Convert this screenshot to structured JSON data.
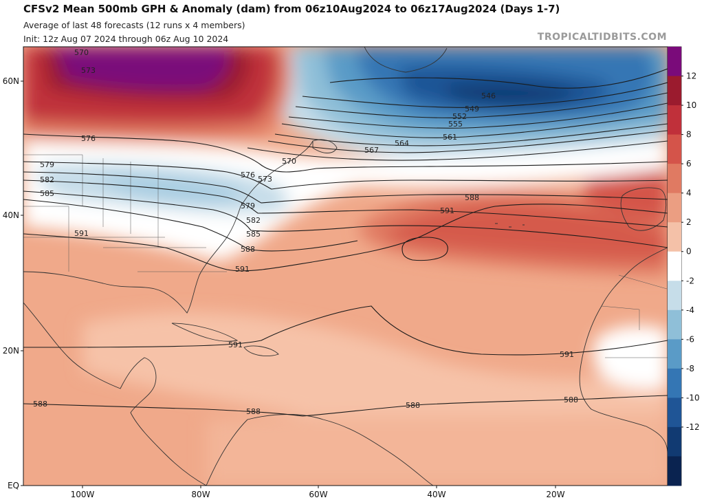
{
  "header": {
    "title": "CFSv2 Mean 500mb GPH & Anomaly (dam) from 06z10Aug2024 to 06z17Aug2024 (Days 1-7)",
    "line2": "Average of last 48 forecasts (12 runs x 4 members)",
    "line3": "Init: 12z Aug 07 2024 through 06z Aug 10 2024",
    "watermark": "TROPICALTIDBITS.COM"
  },
  "axes": {
    "lat_labels": [
      "60N",
      "40N",
      "20N",
      "EQ"
    ],
    "lon_labels": [
      "100W",
      "80W",
      "60W",
      "40W",
      "20W"
    ]
  },
  "colorbar": {
    "ticks": [
      "12",
      "10",
      "8",
      "6",
      "4",
      "2",
      "0",
      "-2",
      "-4",
      "-6",
      "-8",
      "-10",
      "-12"
    ],
    "colors": [
      "#7a0b7a",
      "#9b1b2e",
      "#c0303a",
      "#d4544a",
      "#e07a62",
      "#eb9e82",
      "#f4c1a8",
      "#ffffff",
      "#c6dde9",
      "#8fbfd8",
      "#5a9bc7",
      "#3476b4",
      "#1f5596",
      "#113a72",
      "#0a2350"
    ]
  },
  "contours": [
    {
      "value": "570",
      "label": "570"
    },
    {
      "value": "573",
      "label": "573"
    },
    {
      "value": "546",
      "label": "546"
    },
    {
      "value": "549",
      "label": "549"
    },
    {
      "value": "552",
      "label": "552"
    },
    {
      "value": "555",
      "label": "555"
    },
    {
      "value": "561",
      "label": "561"
    },
    {
      "value": "564",
      "label": "564"
    },
    {
      "value": "567",
      "label": "567"
    },
    {
      "value": "576",
      "label": "576"
    },
    {
      "value": "579",
      "label": "579"
    },
    {
      "value": "582",
      "label": "582"
    },
    {
      "value": "585",
      "label": "585"
    },
    {
      "value": "588",
      "label": "588"
    },
    {
      "value": "591",
      "label": "591"
    }
  ]
}
